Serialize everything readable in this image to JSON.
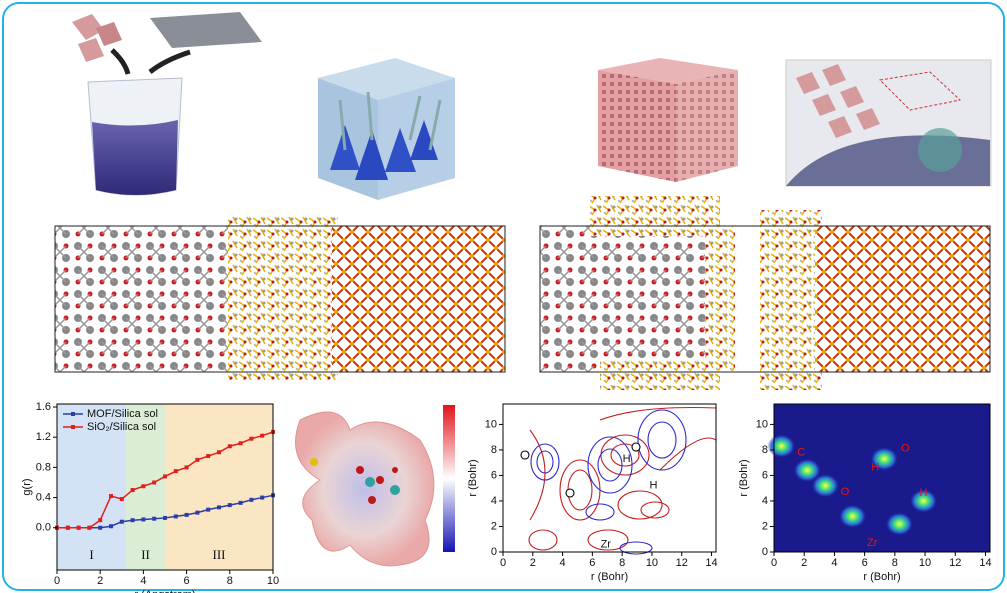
{
  "chart_data": [
    {
      "type": "line",
      "xlabel": "r (Angstrom)",
      "ylabel": "g(r)",
      "xlim": [
        0,
        10
      ],
      "xticks": [
        0,
        2,
        4,
        6,
        8,
        10
      ],
      "ylim": [
        -0.56,
        1.64
      ],
      "yticks": [
        {
          "value": 0,
          "label": "0.0"
        },
        0.4,
        0.8,
        1.2,
        1.6
      ],
      "legend": "upper left",
      "regions": [
        {
          "label": "I",
          "from": 0,
          "to": 3.2,
          "color": "#d3e2f4"
        },
        {
          "label": "II",
          "from": 3.2,
          "to": 5,
          "color": "#dcedd6"
        },
        {
          "label": "III",
          "from": 5,
          "to": 10,
          "color": "#fbe6c4"
        }
      ],
      "x": [
        0,
        0.5,
        1,
        1.5,
        2,
        2.5,
        3,
        3.5,
        4,
        4.5,
        5,
        5.5,
        6,
        6.5,
        7,
        7.5,
        8,
        8.5,
        9,
        9.5,
        10
      ],
      "series": [
        {
          "name": "MOF/Silica sol",
          "color": "#2b3fa8",
          "values": [
            0,
            0,
            0,
            0,
            0,
            0.02,
            0.08,
            0.1,
            0.11,
            0.12,
            0.13,
            0.15,
            0.17,
            0.2,
            0.24,
            0.27,
            0.3,
            0.33,
            0.37,
            0.4,
            0.43
          ]
        },
        {
          "name": "SiO₂/Silica sol",
          "color": "#e0201b",
          "values": [
            0,
            0,
            0,
            0,
            0.1,
            0.42,
            0.38,
            0.5,
            0.55,
            0.6,
            0.68,
            0.75,
            0.8,
            0.9,
            0.95,
            1.0,
            1.08,
            1.12,
            1.18,
            1.22,
            1.27
          ]
        }
      ]
    },
    {
      "type": "contour",
      "xlabel": "r (Bohr)",
      "ylabel": "r (Bohr)",
      "xlim": [
        0,
        14.3
      ],
      "xticks": [
        0,
        2,
        4,
        6,
        8,
        10,
        12,
        14
      ],
      "ylim": [
        0,
        11.6
      ],
      "yticks": [
        0,
        2,
        4,
        6,
        8,
        10
      ],
      "annotations": [
        {
          "text": "H",
          "x": 8.3,
          "y": 7.3
        },
        {
          "text": "H",
          "x": 10.1,
          "y": 5.2
        },
        {
          "text": "Zr",
          "x": 6.9,
          "y": 0.6
        }
      ]
    },
    {
      "type": "heatmap",
      "xlabel": "r (Bohr)",
      "ylabel": "r (Bohr)",
      "xlim": [
        0,
        14.3
      ],
      "xticks": [
        0,
        2,
        4,
        6,
        8,
        10,
        12,
        14
      ],
      "ylim": [
        0,
        11.6
      ],
      "yticks": [
        0,
        2,
        4,
        6,
        8,
        10
      ],
      "peaks": [
        [
          0.5,
          8.3
        ],
        [
          2.2,
          6.4
        ],
        [
          3.4,
          5.2
        ],
        [
          7.3,
          7.3
        ],
        [
          9.9,
          4.0
        ],
        [
          5.2,
          2.8
        ],
        [
          8.3,
          2.2
        ]
      ],
      "annotations": [
        {
          "text": "C",
          "x": 1.8,
          "y": 7.8
        },
        {
          "text": "H",
          "x": 6.7,
          "y": 6.6
        },
        {
          "text": "O",
          "x": 8.7,
          "y": 8.1
        },
        {
          "text": "O",
          "x": 4.7,
          "y": 4.7
        },
        {
          "text": "H",
          "x": 9.9,
          "y": 4.6
        },
        {
          "text": "Zr",
          "x": 6.5,
          "y": 0.7
        }
      ]
    }
  ]
}
